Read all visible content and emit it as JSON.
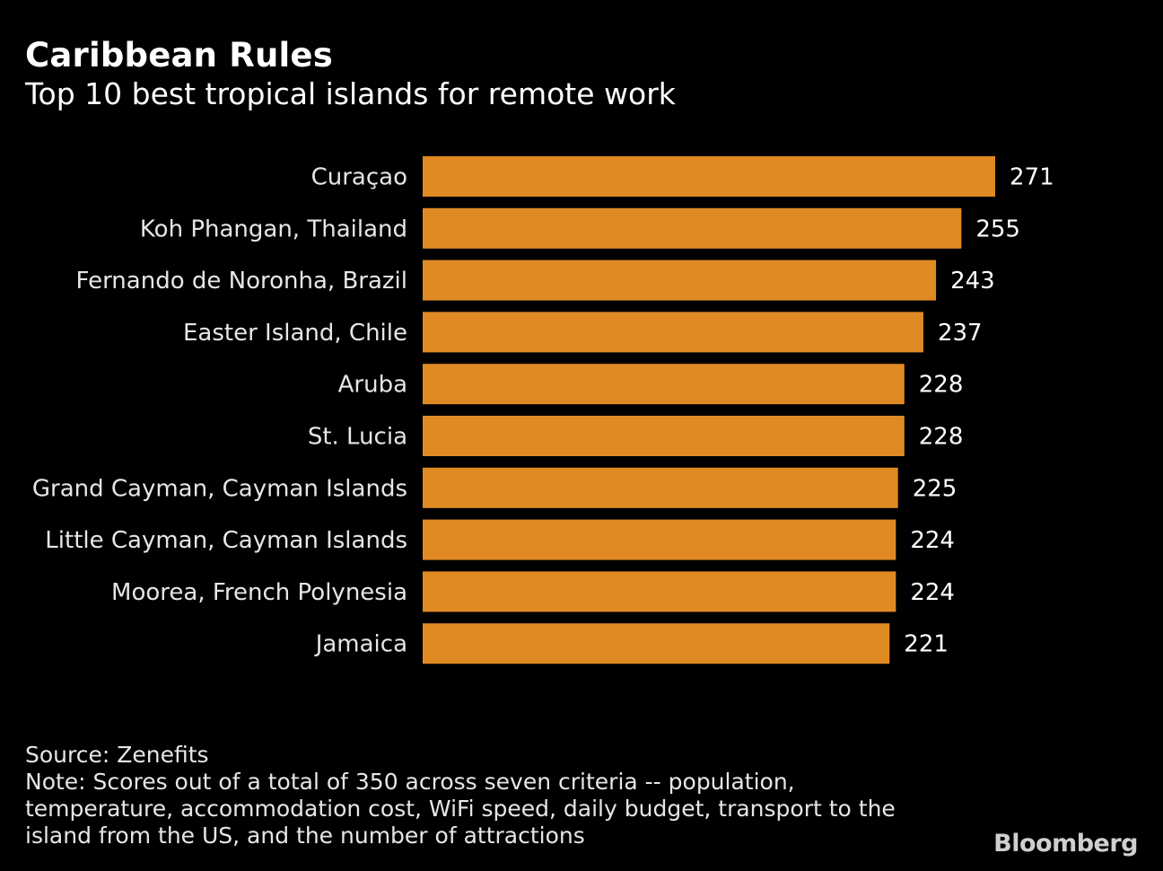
{
  "header": {
    "title": "Caribbean Rules",
    "subtitle": "Top 10 best tropical islands for remote work"
  },
  "chart_data": {
    "type": "bar",
    "orientation": "horizontal",
    "categories": [
      "Curaçao",
      "Koh Phangan, Thailand",
      "Fernando de Noronha, Brazil",
      "Easter Island, Chile",
      "Aruba",
      "St. Lucia",
      "Grand Cayman, Cayman Islands",
      "Little Cayman, Cayman Islands",
      "Moorea, French Polynesia",
      "Jamaica"
    ],
    "values": [
      271,
      255,
      243,
      237,
      228,
      228,
      225,
      224,
      224,
      221
    ],
    "data_labels": [
      "271",
      "255",
      "243",
      "237",
      "228",
      "228",
      "225",
      "224",
      "224",
      "221"
    ],
    "bar_color": "#e08a24",
    "xlim": [
      0,
      271
    ],
    "grid": false,
    "legend": "none"
  },
  "footer": {
    "source": "Source: Zenefits",
    "note_lines": [
      "Note: Scores out of a total of 350 across seven criteria -- population,",
      "temperature, accommodation cost, WiFi speed, daily budget, transport to the",
      "island from the US, and the number of attractions"
    ]
  },
  "brand": {
    "logo": "Bloomberg"
  }
}
